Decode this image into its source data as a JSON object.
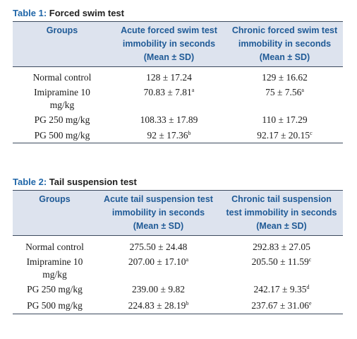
{
  "table1": {
    "caption_num": "Table 1:",
    "caption_title": "Forced swim test",
    "headers": [
      [
        "Groups"
      ],
      [
        "Acute forced swim test",
        "immobility in seconds",
        "(Mean ± SD)"
      ],
      [
        "Chronic forced swim test",
        "immobility in seconds",
        "(Mean ± SD)"
      ]
    ],
    "rows": [
      {
        "group": [
          "Normal control"
        ],
        "acute": "128 ± 17.24",
        "acute_sup": "",
        "chronic": "129 ± 16.62",
        "chronic_sup": ""
      },
      {
        "group": [
          "Imipramine 10",
          "mg/kg"
        ],
        "acute": "70.83 ± 7.81",
        "acute_sup": "a",
        "chronic": "75 ± 7.56",
        "chronic_sup": "a"
      },
      {
        "group": [
          "PG 250 mg/kg"
        ],
        "acute": "108.33 ± 17.89",
        "acute_sup": "",
        "chronic": "110 ± 17.29",
        "chronic_sup": ""
      },
      {
        "group": [
          "PG 500 mg/kg"
        ],
        "acute": "92 ± 17.36",
        "acute_sup": "b",
        "chronic": "92.17 ± 20.15",
        "chronic_sup": "c"
      }
    ]
  },
  "table2": {
    "caption_num": "Table 2:",
    "caption_title": "Tail suspension test",
    "headers": [
      [
        "Groups"
      ],
      [
        "Acute tail suspension test",
        "immobility in seconds",
        "(Mean ± SD)"
      ],
      [
        "Chronic tail suspension",
        "test immobility in seconds",
        "(Mean ± SD)"
      ]
    ],
    "rows": [
      {
        "group": [
          "Normal control"
        ],
        "acute": "275.50 ± 24.48",
        "acute_sup": "",
        "chronic": "292.83 ± 27.05",
        "chronic_sup": ""
      },
      {
        "group": [
          "Imipramine 10",
          "mg/kg"
        ],
        "acute": "207.00 ± 17.10",
        "acute_sup": "a",
        "chronic": "205.50 ± 11.59",
        "chronic_sup": "c"
      },
      {
        "group": [
          "PG 250 mg/kg"
        ],
        "acute": "239.00 ± 9.82",
        "acute_sup": "",
        "chronic": "242.17 ± 9.35",
        "chronic_sup": "d"
      },
      {
        "group": [
          "PG 500 mg/kg"
        ],
        "acute": "224.83 ± 28.19",
        "acute_sup": "b",
        "chronic": "237.67 ± 31.06",
        "chronic_sup": "e"
      }
    ]
  }
}
